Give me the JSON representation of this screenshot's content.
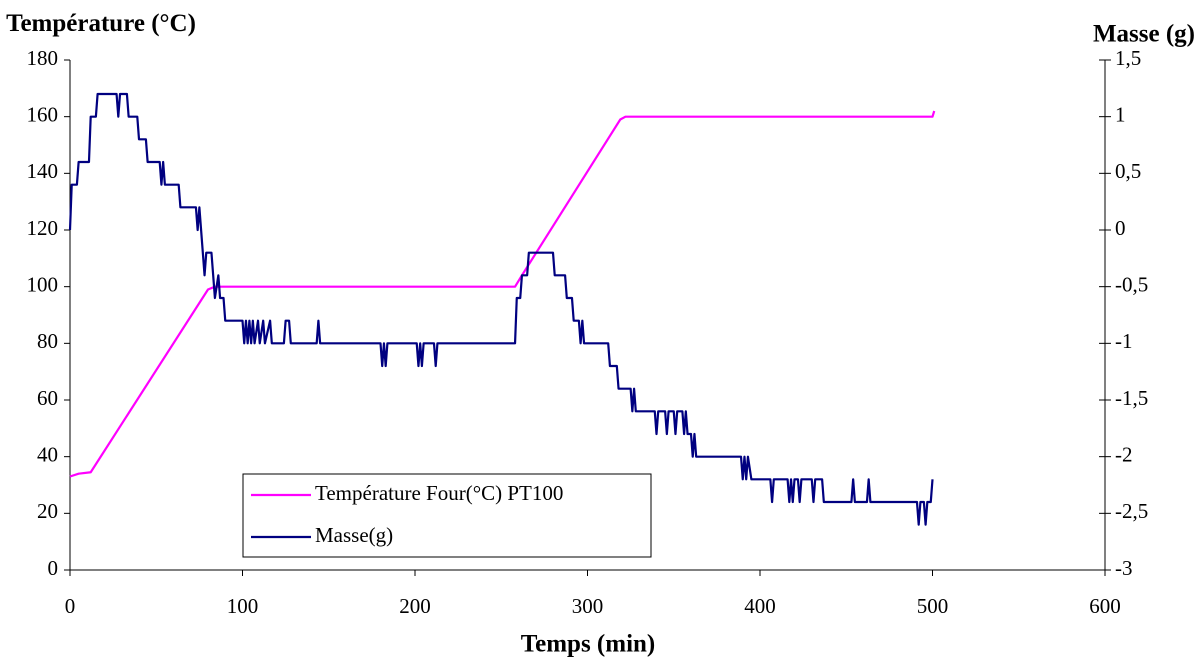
{
  "chart_data": {
    "type": "line",
    "y_label": "Température (°C)",
    "y2_label": "Masse (g)",
    "x_label": "Temps (min)",
    "xlim": [
      0,
      600
    ],
    "xticks": [
      0,
      100,
      200,
      300,
      400,
      500,
      600
    ],
    "ylim": [
      0,
      180
    ],
    "yticks": [
      0,
      20,
      40,
      60,
      80,
      100,
      120,
      140,
      160,
      180
    ],
    "y2lim": [
      -3,
      1.5
    ],
    "y2ticks": [
      -3,
      {
        "value": -2.5,
        "label": "-2,5"
      },
      -2,
      {
        "value": -1.5,
        "label": "-1,5"
      },
      -1,
      {
        "value": -0.5,
        "label": "-0,5"
      },
      0,
      {
        "value": 0.5,
        "label": "0,5"
      },
      1,
      {
        "value": 1.5,
        "label": "1,5"
      }
    ],
    "grid": false,
    "legend": "lower left",
    "series": [
      {
        "name": "Température Four(°C) PT100",
        "color": "#ff00ff",
        "axis": "y",
        "x": [
          0,
          5,
          12,
          80,
          84,
          258,
          262,
          319,
          322,
          500,
          501
        ],
        "values": [
          33,
          34,
          34.5,
          99,
          100,
          100,
          104,
          159,
          160,
          160,
          162
        ]
      },
      {
        "name": "Masse(g)",
        "color": "#000080",
        "axis": "y2",
        "x": [
          0,
          1,
          4,
          5,
          11,
          12,
          15,
          16,
          27,
          28,
          29,
          33,
          34,
          39,
          40,
          44,
          45,
          52,
          53,
          54,
          55,
          63,
          64,
          73,
          74,
          75,
          76,
          78,
          79,
          82,
          83,
          84,
          86,
          87,
          89,
          90,
          100,
          101,
          102,
          103,
          104,
          105,
          106,
          107,
          109,
          110,
          112,
          113,
          116,
          117,
          124,
          125,
          127,
          128,
          143,
          144,
          145,
          180,
          181,
          182,
          183,
          184,
          201,
          202,
          203,
          204,
          205,
          211,
          212,
          213,
          258,
          259,
          261,
          262,
          265,
          266,
          280,
          281,
          287,
          288,
          291,
          292,
          295,
          296,
          297,
          298,
          312,
          313,
          317,
          318,
          325,
          326,
          327,
          328,
          339,
          340,
          341,
          345,
          346,
          347,
          350,
          351,
          352,
          355,
          356,
          357,
          358,
          360,
          361,
          362,
          363,
          389,
          390,
          391,
          392,
          393,
          395,
          406,
          407,
          408,
          416,
          417,
          418,
          419,
          420,
          422,
          423,
          424,
          430,
          431,
          432,
          436,
          437,
          453,
          454,
          455,
          462,
          463,
          464,
          491,
          492,
          493,
          495,
          496,
          497,
          499,
          500
        ],
        "values": [
          0,
          0.4,
          0.4,
          0.6,
          0.6,
          1.0,
          1.0,
          1.2,
          1.2,
          1.0,
          1.2,
          1.2,
          1.0,
          1.0,
          0.8,
          0.8,
          0.6,
          0.6,
          0.4,
          0.6,
          0.4,
          0.4,
          0.2,
          0.2,
          0,
          0.2,
          0,
          -0.4,
          -0.2,
          -0.2,
          -0.4,
          -0.6,
          -0.4,
          -0.6,
          -0.6,
          -0.8,
          -0.8,
          -1,
          -0.8,
          -1,
          -0.8,
          -1,
          -0.8,
          -1,
          -0.8,
          -1,
          -0.8,
          -1,
          -0.8,
          -1,
          -1,
          -0.8,
          -0.8,
          -1,
          -1,
          -0.8,
          -1,
          -1,
          -1.2,
          -1,
          -1.2,
          -1,
          -1,
          -1.2,
          -1,
          -1.2,
          -1,
          -1,
          -1.2,
          -1,
          -1,
          -0.6,
          -0.6,
          -0.4,
          -0.4,
          -0.2,
          -0.2,
          -0.4,
          -0.4,
          -0.6,
          -0.6,
          -0.8,
          -0.8,
          -1,
          -0.8,
          -1,
          -1,
          -1.2,
          -1.2,
          -1.4,
          -1.4,
          -1.6,
          -1.4,
          -1.6,
          -1.6,
          -1.8,
          -1.6,
          -1.6,
          -1.8,
          -1.6,
          -1.6,
          -1.8,
          -1.6,
          -1.6,
          -1.8,
          -1.6,
          -1.8,
          -1.8,
          -2,
          -1.8,
          -2,
          -2,
          -2.2,
          -2,
          -2.2,
          -2,
          -2.2,
          -2.2,
          -2.4,
          -2.2,
          -2.2,
          -2.4,
          -2.2,
          -2.4,
          -2.2,
          -2.2,
          -2.4,
          -2.2,
          -2.2,
          -2.4,
          -2.2,
          -2.2,
          -2.4,
          -2.4,
          -2.2,
          -2.4,
          -2.4,
          -2.2,
          -2.4,
          -2.4,
          -2.6,
          -2.4,
          -2.4,
          -2.6,
          -2.4,
          -2.4,
          -2.2
        ]
      }
    ]
  }
}
